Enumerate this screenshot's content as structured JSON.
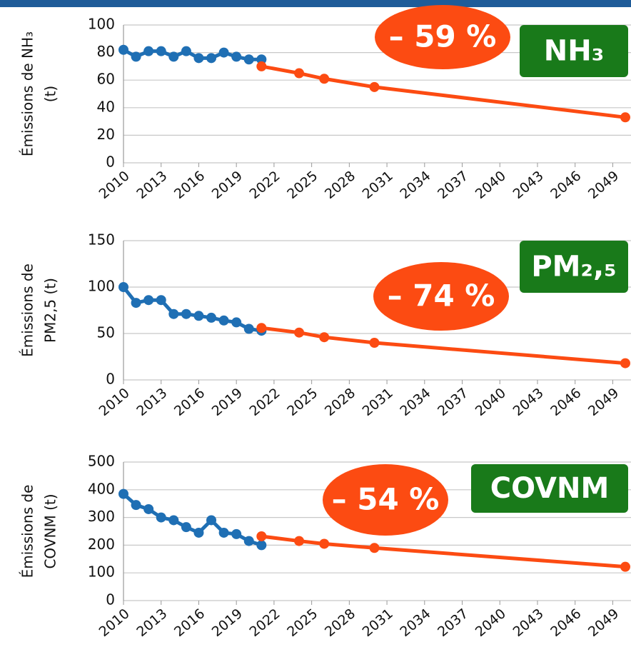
{
  "chart_data": [
    {
      "type": "line",
      "y_label": [
        "Émissions de NH₃",
        "(t)"
      ],
      "annotation": "– 59 %",
      "badge": "NH₃",
      "xlim": [
        2010,
        2050
      ],
      "xticks": [
        2010,
        2013,
        2016,
        2019,
        2022,
        2025,
        2028,
        2031,
        2034,
        2037,
        2040,
        2043,
        2046,
        2049
      ],
      "ylim": [
        0,
        100
      ],
      "yticks": [
        0,
        20,
        40,
        60,
        80,
        100
      ],
      "grid": true,
      "series": [
        {
          "color": "#1f6fb4",
          "x": [
            2010,
            2011,
            2012,
            2013,
            2014,
            2015,
            2016,
            2017,
            2018,
            2019,
            2020,
            2021
          ],
          "values": [
            82,
            77,
            81,
            81,
            77,
            81,
            76,
            76,
            80,
            77,
            75,
            75
          ]
        },
        {
          "color": "#fc4b12",
          "x": [
            2021,
            2024,
            2026,
            2030,
            2050
          ],
          "values": [
            70,
            65,
            61,
            55,
            33
          ]
        }
      ]
    },
    {
      "type": "line",
      "y_label": [
        "Émissions de",
        "PM2,5 (t)"
      ],
      "annotation": "– 74 %",
      "badge": "PM₂,₅",
      "xlim": [
        2010,
        2050
      ],
      "xticks": [
        2010,
        2013,
        2016,
        2019,
        2022,
        2025,
        2028,
        2031,
        2034,
        2037,
        2040,
        2043,
        2046,
        2049
      ],
      "ylim": [
        0,
        150
      ],
      "yticks": [
        0,
        50,
        100,
        150
      ],
      "grid": true,
      "series": [
        {
          "color": "#1f6fb4",
          "x": [
            2010,
            2011,
            2012,
            2013,
            2014,
            2015,
            2016,
            2017,
            2018,
            2019,
            2020,
            2021
          ],
          "values": [
            100,
            83,
            86,
            86,
            71,
            71,
            69,
            67,
            64,
            62,
            55,
            53
          ]
        },
        {
          "color": "#fc4b12",
          "x": [
            2021,
            2024,
            2026,
            2030,
            2050
          ],
          "values": [
            56,
            51,
            46,
            40,
            18
          ]
        }
      ]
    },
    {
      "type": "line",
      "y_label": [
        "Émissions de",
        "COVNM (t)"
      ],
      "annotation": "– 54 %",
      "badge": "COVNM",
      "xlim": [
        2010,
        2050
      ],
      "xticks": [
        2010,
        2013,
        2016,
        2019,
        2022,
        2025,
        2028,
        2031,
        2034,
        2037,
        2040,
        2043,
        2046,
        2049
      ],
      "ylim": [
        0,
        500
      ],
      "yticks": [
        0,
        100,
        200,
        300,
        400,
        500
      ],
      "grid": true,
      "series": [
        {
          "color": "#1f6fb4",
          "x": [
            2010,
            2011,
            2012,
            2013,
            2014,
            2015,
            2016,
            2017,
            2018,
            2019,
            2020,
            2021
          ],
          "values": [
            385,
            345,
            330,
            300,
            290,
            265,
            245,
            290,
            245,
            240,
            215,
            200
          ]
        },
        {
          "color": "#fc4b12",
          "x": [
            2021,
            2024,
            2026,
            2030,
            2050
          ],
          "values": [
            232,
            215,
            205,
            190,
            122
          ]
        }
      ]
    }
  ]
}
